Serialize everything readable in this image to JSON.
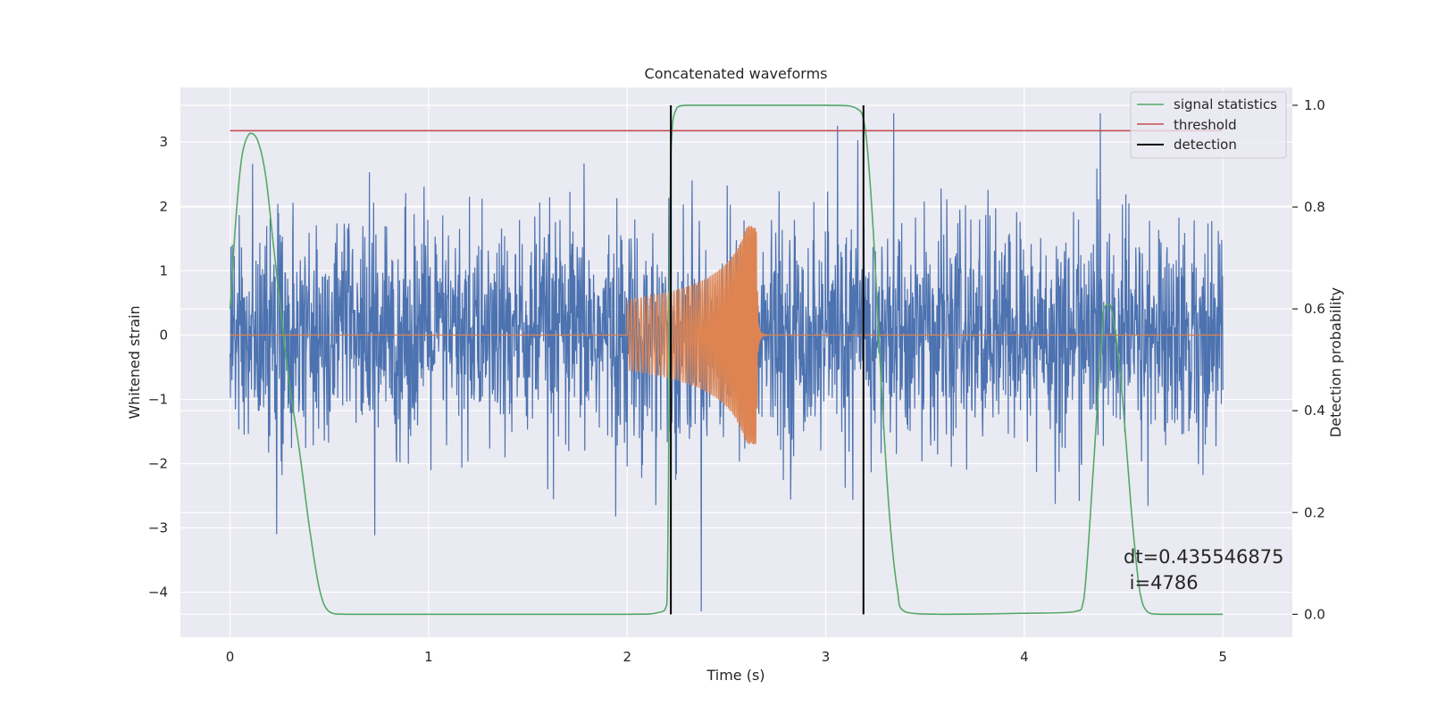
{
  "chart_data": {
    "type": "line",
    "title": "Concatenated waveforms",
    "xlabel": "Time (s)",
    "ylabel": "Whitened strain",
    "y2label": "Detection probability",
    "xlim": [
      -0.25,
      5.35
    ],
    "ylim": [
      -4.7,
      3.85
    ],
    "y2lim": [
      -0.045,
      1.035
    ],
    "x_ticks": [
      0,
      1,
      2,
      3,
      4,
      5
    ],
    "y_ticks": [
      -4,
      -3,
      -2,
      -1,
      0,
      1,
      2,
      3
    ],
    "y2_ticks": [
      0.0,
      0.2,
      0.4,
      0.6,
      0.8,
      1.0
    ],
    "x_tick_labels": [
      "0",
      "1",
      "2",
      "3",
      "4",
      "5"
    ],
    "y_tick_labels": [
      "−4",
      "−3",
      "−2",
      "−1",
      "0",
      "1",
      "2",
      "3"
    ],
    "y2_tick_labels": [
      "0.0",
      "0.2",
      "0.4",
      "0.6",
      "0.8",
      "1.0"
    ],
    "grid": true,
    "legend_position": "top-right",
    "series": [
      {
        "name": "",
        "axis": "left",
        "color": "#4c72b0",
        "kind": "noise",
        "x_range": [
          0,
          5
        ],
        "approx_std": 0.85,
        "min": -4.3,
        "max": 3.45
      },
      {
        "name": "",
        "axis": "left",
        "color": "#dd8452",
        "kind": "chirp",
        "x_range": [
          2.0,
          2.66
        ],
        "start_amplitude": 0.55,
        "peak_amplitude": 1.7,
        "peak_time": 2.65,
        "baseline": 0
      },
      {
        "name": "signal statistics",
        "axis": "right",
        "color": "#55a868",
        "x": [
          0,
          0.03,
          0.06,
          0.1,
          0.14,
          0.18,
          0.22,
          0.26,
          0.3,
          0.35,
          0.4,
          0.45,
          0.5,
          0.6,
          1.0,
          1.5,
          2.0,
          2.15,
          2.2,
          2.22,
          2.25,
          2.3,
          2.4,
          3.0,
          3.15,
          3.2,
          3.24,
          3.28,
          3.32,
          3.36,
          3.4,
          3.6,
          4.0,
          4.25,
          4.3,
          4.35,
          4.4,
          4.43,
          4.46,
          4.5,
          4.54,
          4.58,
          4.62,
          4.7,
          5.0
        ],
        "values": [
          0.6,
          0.78,
          0.9,
          0.945,
          0.93,
          0.86,
          0.72,
          0.58,
          0.45,
          0.32,
          0.17,
          0.05,
          0.005,
          0.0,
          0.0,
          0.0,
          0.0,
          0.003,
          0.02,
          0.9,
          0.995,
          1.0,
          1.0,
          1.0,
          0.995,
          0.95,
          0.75,
          0.45,
          0.2,
          0.05,
          0.005,
          0.0,
          0.002,
          0.005,
          0.03,
          0.3,
          0.6,
          0.61,
          0.55,
          0.4,
          0.2,
          0.05,
          0.005,
          0.0,
          0.0
        ]
      },
      {
        "name": "threshold",
        "axis": "right",
        "color": "#c44e52",
        "x": [
          0,
          5
        ],
        "values": [
          0.95,
          0.95
        ]
      },
      {
        "name": "detection",
        "axis": "right",
        "color": "#000000",
        "kind": "vlines",
        "x": [
          2.22,
          3.19
        ],
        "values": [
          0.0,
          1.0
        ]
      }
    ],
    "annotation": "dt=0.435546875\n i=4786",
    "annotation_lines": [
      "dt=0.435546875",
      " i=4786"
    ]
  }
}
